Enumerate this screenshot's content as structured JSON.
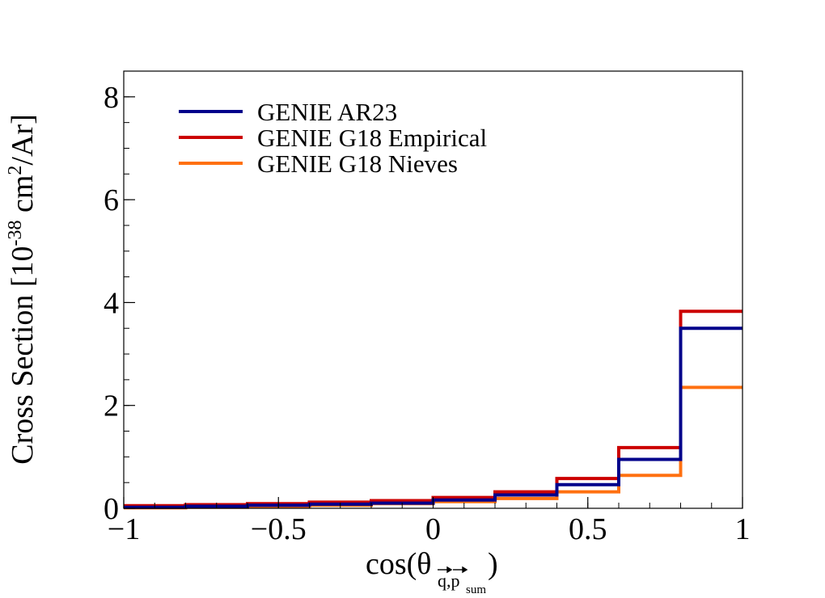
{
  "chart_data": {
    "type": "line",
    "step": true,
    "x_bin_edges": [
      -1,
      -0.8,
      -0.6,
      -0.4,
      -0.2,
      0,
      0.2,
      0.4,
      0.6,
      0.8,
      1
    ],
    "series": [
      {
        "name": "GENIE AR23",
        "color": "#00008b",
        "values": [
          0.02,
          0.04,
          0.06,
          0.08,
          0.1,
          0.16,
          0.26,
          0.46,
          0.95,
          3.5
        ]
      },
      {
        "name": "GENIE G18 Empirical",
        "color": "#cc0000",
        "values": [
          0.05,
          0.07,
          0.09,
          0.12,
          0.15,
          0.21,
          0.32,
          0.58,
          1.18,
          3.83
        ]
      },
      {
        "name": "GENIE G18 Nieves",
        "color": "#ff7010",
        "values": [
          0.01,
          0.02,
          0.03,
          0.06,
          0.09,
          0.13,
          0.19,
          0.32,
          0.64,
          2.35
        ]
      }
    ],
    "xlim": [
      -1,
      1
    ],
    "ylim": [
      0,
      8.5
    ],
    "xticks": [
      -1,
      -0.5,
      0,
      0.5,
      1
    ],
    "xtick_labels": [
      "−1",
      "−0.5",
      "0",
      "0.5",
      "1"
    ],
    "yticks": [
      0,
      2,
      4,
      6,
      8
    ],
    "ytick_labels": [
      "0",
      "2",
      "4",
      "6",
      "8"
    ],
    "xlabel": {
      "main": "cos(θ",
      "subscript": "q,p",
      "subscript_suffix": "sum",
      "close": ")"
    },
    "ylabel": {
      "prefix": "Cross Section [10",
      "exponent": "-38",
      "middle": " cm",
      "exponent2": "2",
      "suffix": "/Ar]"
    },
    "legend_position": "top-left",
    "grid": false
  }
}
